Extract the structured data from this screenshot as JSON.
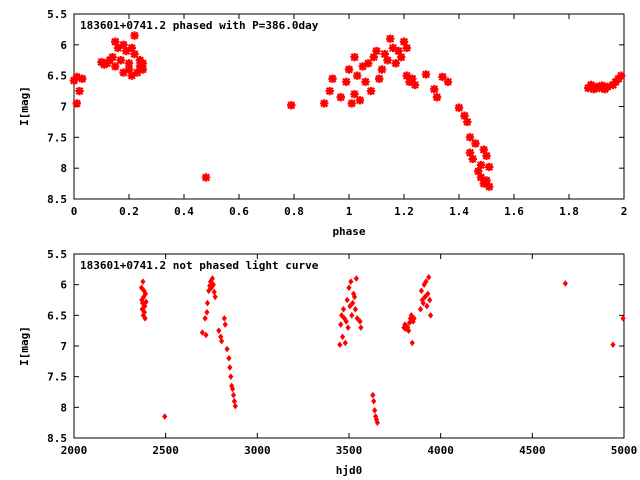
{
  "colors": {
    "points": "#ff0000",
    "axes": "#000000",
    "background": "#ffffff"
  },
  "chart_data": [
    {
      "type": "scatter",
      "title": "183601+0741.2 phased with P=386.0day",
      "xlabel": "phase",
      "ylabel": "I[mag]",
      "xlim": [
        0,
        2
      ],
      "ylim": [
        8.5,
        5.5
      ],
      "y_inverted": true,
      "grid": false,
      "marker": "large-filled-star",
      "xticks": [
        "0",
        "0.2",
        "0.4",
        "0.6",
        "0.8",
        "1",
        "1.2",
        "1.4",
        "1.6",
        "1.8",
        "2"
      ],
      "yticks": [
        "5.5",
        "6",
        "6.5",
        "7",
        "7.5",
        "8",
        "8.5"
      ],
      "series": [
        {
          "points": [
            [
              0.0,
              6.58
            ],
            [
              0.01,
              6.52
            ],
            [
              0.01,
              6.95
            ],
            [
              0.02,
              6.75
            ],
            [
              0.03,
              6.55
            ],
            [
              0.1,
              6.28
            ],
            [
              0.11,
              6.32
            ],
            [
              0.12,
              6.3
            ],
            [
              0.13,
              6.25
            ],
            [
              0.14,
              6.2
            ],
            [
              0.15,
              5.95
            ],
            [
              0.15,
              6.35
            ],
            [
              0.16,
              6.05
            ],
            [
              0.17,
              6.25
            ],
            [
              0.18,
              6.45
            ],
            [
              0.18,
              6.0
            ],
            [
              0.19,
              6.1
            ],
            [
              0.2,
              6.3
            ],
            [
              0.2,
              6.4
            ],
            [
              0.21,
              6.5
            ],
            [
              0.21,
              6.05
            ],
            [
              0.22,
              5.85
            ],
            [
              0.22,
              6.15
            ],
            [
              0.23,
              6.45
            ],
            [
              0.24,
              6.25
            ],
            [
              0.24,
              6.35
            ],
            [
              0.25,
              6.4
            ],
            [
              0.25,
              6.3
            ],
            [
              0.48,
              8.15
            ],
            [
              0.79,
              6.98
            ],
            [
              0.91,
              6.95
            ],
            [
              0.93,
              6.75
            ],
            [
              0.94,
              6.55
            ],
            [
              0.97,
              6.85
            ],
            [
              0.99,
              6.6
            ],
            [
              1.0,
              6.4
            ],
            [
              1.01,
              6.95
            ],
            [
              1.02,
              6.8
            ],
            [
              1.02,
              6.2
            ],
            [
              1.03,
              6.5
            ],
            [
              1.04,
              6.9
            ],
            [
              1.05,
              6.35
            ],
            [
              1.06,
              6.6
            ],
            [
              1.07,
              6.3
            ],
            [
              1.08,
              6.75
            ],
            [
              1.09,
              6.2
            ],
            [
              1.1,
              6.1
            ],
            [
              1.11,
              6.55
            ],
            [
              1.12,
              6.4
            ],
            [
              1.13,
              6.15
            ],
            [
              1.14,
              6.25
            ],
            [
              1.15,
              5.9
            ],
            [
              1.16,
              6.05
            ],
            [
              1.17,
              6.3
            ],
            [
              1.18,
              6.1
            ],
            [
              1.19,
              6.2
            ],
            [
              1.2,
              5.95
            ],
            [
              1.21,
              6.05
            ],
            [
              1.21,
              6.5
            ],
            [
              1.22,
              6.6
            ],
            [
              1.23,
              6.55
            ],
            [
              1.24,
              6.65
            ],
            [
              1.28,
              6.48
            ],
            [
              1.31,
              6.72
            ],
            [
              1.32,
              6.85
            ],
            [
              1.34,
              6.52
            ],
            [
              1.36,
              6.6
            ],
            [
              1.4,
              7.02
            ],
            [
              1.42,
              7.15
            ],
            [
              1.43,
              7.25
            ],
            [
              1.44,
              7.75
            ],
            [
              1.44,
              7.5
            ],
            [
              1.45,
              7.85
            ],
            [
              1.46,
              7.6
            ],
            [
              1.47,
              8.05
            ],
            [
              1.48,
              7.95
            ],
            [
              1.48,
              8.15
            ],
            [
              1.49,
              7.7
            ],
            [
              1.49,
              8.25
            ],
            [
              1.5,
              7.8
            ],
            [
              1.5,
              8.2
            ],
            [
              1.51,
              8.3
            ],
            [
              1.51,
              7.98
            ],
            [
              1.87,
              6.7
            ],
            [
              1.88,
              6.65
            ],
            [
              1.89,
              6.72
            ],
            [
              1.9,
              6.68
            ],
            [
              1.91,
              6.7
            ],
            [
              1.92,
              6.66
            ],
            [
              1.93,
              6.72
            ],
            [
              1.94,
              6.68
            ],
            [
              1.96,
              6.65
            ],
            [
              1.97,
              6.6
            ],
            [
              1.98,
              6.55
            ],
            [
              1.99,
              6.5
            ]
          ]
        }
      ]
    },
    {
      "type": "scatter",
      "title": "183601+0741.2 not phased light curve",
      "xlabel": "hjd0",
      "ylabel": "I[mag]",
      "xlim": [
        2000,
        5000
      ],
      "ylim": [
        8.5,
        5.5
      ],
      "y_inverted": true,
      "grid": false,
      "marker": "small-filled-diamond",
      "xticks": [
        "2000",
        "2500",
        "3000",
        "3500",
        "4000",
        "4500",
        "5000"
      ],
      "yticks": [
        "5.5",
        "6",
        "6.5",
        "7",
        "7.5",
        "8",
        "8.5"
      ],
      "series": [
        {
          "points": [
            [
              2368,
              6.05
            ],
            [
              2370,
              6.25
            ],
            [
              2372,
              6.4
            ],
            [
              2374,
              6.3
            ],
            [
              2376,
              5.95
            ],
            [
              2378,
              6.5
            ],
            [
              2380,
              6.2
            ],
            [
              2382,
              6.1
            ],
            [
              2384,
              6.45
            ],
            [
              2386,
              6.35
            ],
            [
              2388,
              6.55
            ],
            [
              2390,
              6.15
            ],
            [
              2393,
              6.28
            ],
            [
              2495,
              8.15
            ],
            [
              2700,
              6.78
            ],
            [
              2715,
              6.55
            ],
            [
              2720,
              6.82
            ],
            [
              2725,
              6.45
            ],
            [
              2728,
              6.3
            ],
            [
              2735,
              6.1
            ],
            [
              2740,
              6.02
            ],
            [
              2745,
              5.95
            ],
            [
              2750,
              6.05
            ],
            [
              2755,
              5.9
            ],
            [
              2760,
              6.0
            ],
            [
              2765,
              6.12
            ],
            [
              2770,
              6.2
            ],
            [
              2790,
              6.75
            ],
            [
              2800,
              6.85
            ],
            [
              2805,
              6.92
            ],
            [
              2820,
              6.55
            ],
            [
              2825,
              6.65
            ],
            [
              2835,
              7.05
            ],
            [
              2845,
              7.2
            ],
            [
              2850,
              7.35
            ],
            [
              2855,
              7.5
            ],
            [
              2860,
              7.65
            ],
            [
              2865,
              7.7
            ],
            [
              2870,
              7.8
            ],
            [
              2875,
              7.9
            ],
            [
              2880,
              7.98
            ],
            [
              3450,
              6.98
            ],
            [
              3455,
              6.65
            ],
            [
              3460,
              6.5
            ],
            [
              3465,
              6.85
            ],
            [
              3470,
              6.4
            ],
            [
              3475,
              6.55
            ],
            [
              3480,
              6.95
            ],
            [
              3485,
              6.6
            ],
            [
              3490,
              6.25
            ],
            [
              3495,
              6.7
            ],
            [
              3500,
              6.05
            ],
            [
              3505,
              6.35
            ],
            [
              3510,
              5.95
            ],
            [
              3515,
              6.5
            ],
            [
              3520,
              6.3
            ],
            [
              3525,
              6.15
            ],
            [
              3530,
              6.2
            ],
            [
              3535,
              6.4
            ],
            [
              3540,
              5.9
            ],
            [
              3545,
              6.55
            ],
            [
              3560,
              6.6
            ],
            [
              3565,
              6.7
            ],
            [
              3630,
              7.8
            ],
            [
              3635,
              7.9
            ],
            [
              3640,
              8.05
            ],
            [
              3645,
              8.15
            ],
            [
              3650,
              8.2
            ],
            [
              3655,
              8.25
            ],
            [
              3800,
              6.7
            ],
            [
              3805,
              6.65
            ],
            [
              3810,
              6.72
            ],
            [
              3815,
              6.68
            ],
            [
              3820,
              6.7
            ],
            [
              3825,
              6.75
            ],
            [
              3830,
              6.62
            ],
            [
              3835,
              6.55
            ],
            [
              3840,
              6.5
            ],
            [
              3845,
              6.95
            ],
            [
              3850,
              6.6
            ],
            [
              3855,
              6.55
            ],
            [
              3890,
              6.4
            ],
            [
              3895,
              6.1
            ],
            [
              3900,
              6.25
            ],
            [
              3905,
              6.3
            ],
            [
              3910,
              6.0
            ],
            [
              3915,
              6.2
            ],
            [
              3920,
              5.95
            ],
            [
              3925,
              6.35
            ],
            [
              3930,
              6.15
            ],
            [
              3935,
              5.88
            ],
            [
              3940,
              6.25
            ],
            [
              3945,
              6.5
            ],
            [
              4680,
              5.98
            ],
            [
              4940,
              6.98
            ],
            [
              4995,
              6.55
            ]
          ]
        }
      ]
    }
  ]
}
